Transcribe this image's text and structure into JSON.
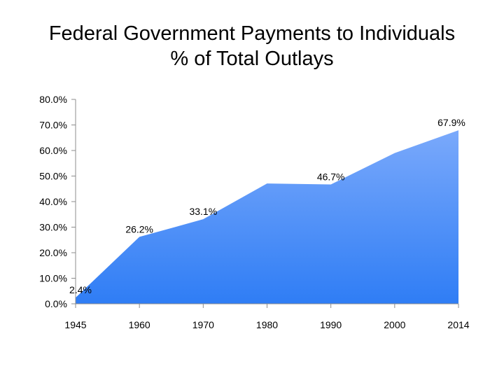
{
  "chart_data": {
    "type": "area",
    "title_line1": "Federal Government Payments to Individuals",
    "title_line2": "% of Total Outlays",
    "categories": [
      "1945",
      "1960",
      "1970",
      "1980",
      "1990",
      "2000",
      "2014"
    ],
    "series": [
      {
        "values": [
          2.4,
          26.2,
          33.1,
          47.1,
          46.7,
          59.0,
          67.9
        ]
      }
    ],
    "data_labels": [
      {
        "category": "1945",
        "text": "2.4%"
      },
      {
        "category": "1960",
        "text": "26.2%"
      },
      {
        "category": "1970",
        "text": "33.1%"
      },
      {
        "category": "1990",
        "text": "46.7%"
      },
      {
        "category": "2014",
        "text": "67.9%"
      }
    ],
    "y_ticks": [
      "0.0%",
      "10.0%",
      "20.0%",
      "30.0%",
      "40.0%",
      "50.0%",
      "60.0%",
      "70.0%",
      "80.0%"
    ],
    "ylim": [
      0,
      80
    ],
    "grid": false,
    "legend": "none",
    "colors": {
      "fill_top": "#7aa9fb",
      "fill_bottom": "#2f7df5",
      "axis": "#8c8c8c"
    }
  }
}
